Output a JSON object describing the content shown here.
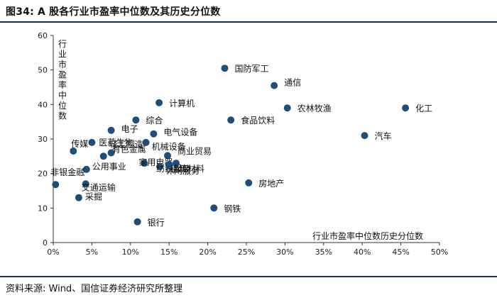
{
  "header": {
    "title": "图34: A 股各行业市盈率中位数及其历史分位数"
  },
  "footer": {
    "source": "资料来源: Wind、国信证券经济研究所整理"
  },
  "colors": {
    "point": "#1f4e79",
    "axis": "#333333",
    "rule": "#1a2e5a"
  },
  "chart_data": {
    "type": "scatter",
    "title": "A 股各行业市盈率中位数及其历史分位数",
    "xlabel": "行业市盈率中位数历史分位数",
    "ylabel": "行业市盈率中位数",
    "xlim": [
      0,
      50
    ],
    "ylim": [
      0,
      60
    ],
    "x_ticks": [
      0,
      5,
      10,
      15,
      20,
      25,
      30,
      35,
      40,
      45,
      50
    ],
    "x_tick_labels": [
      "0%",
      "5%",
      "10%",
      "15%",
      "20%",
      "25%",
      "30%",
      "35%",
      "40%",
      "45%",
      "50%"
    ],
    "y_ticks": [
      0,
      10,
      20,
      30,
      40,
      50,
      60
    ],
    "y_tick_labels": [
      "0",
      "10",
      "20",
      "30",
      "40",
      "50",
      "60"
    ],
    "grid": false,
    "points": [
      {
        "name": "国防军工",
        "x": 22.2,
        "y": 50.5
      },
      {
        "name": "通信",
        "x": 28.6,
        "y": 45.5
      },
      {
        "name": "农林牧渔",
        "x": 30.3,
        "y": 39.0
      },
      {
        "name": "化工",
        "x": 45.6,
        "y": 39.0
      },
      {
        "name": "计算机",
        "x": 13.7,
        "y": 40.5
      },
      {
        "name": "综合",
        "x": 10.7,
        "y": 35.5
      },
      {
        "name": "食品饮料",
        "x": 23.0,
        "y": 35.5
      },
      {
        "name": "电子",
        "x": 7.5,
        "y": 32.5
      },
      {
        "name": "电气设备",
        "x": 13.0,
        "y": 31.5
      },
      {
        "name": "汽车",
        "x": 40.3,
        "y": 31.0
      },
      {
        "name": "传媒",
        "x": 2.6,
        "y": 26.5
      },
      {
        "name": "医药生物",
        "x": 5.0,
        "y": 29.0
      },
      {
        "name": "轻工制造",
        "x": 7.5,
        "y": 26.0
      },
      {
        "name": "机械设备",
        "x": 12.0,
        "y": 29.0
      },
      {
        "name": "有色金属",
        "x": 6.5,
        "y": 25.0
      },
      {
        "name": "商业贸易",
        "x": 14.8,
        "y": 25.2
      },
      {
        "name": "家用电器",
        "x": 11.8,
        "y": 23.0
      },
      {
        "name": "公用事业",
        "x": 4.3,
        "y": 21.2
      },
      {
        "name": "纺织服装",
        "x": 13.8,
        "y": 22.0
      },
      {
        "name": "休闲服务",
        "x": 15.0,
        "y": 22.6
      },
      {
        "name": "建筑材料",
        "x": 15.9,
        "y": 23.0
      },
      {
        "name": "非银金融",
        "x": 0.3,
        "y": 16.8
      },
      {
        "name": "交通运输",
        "x": 4.2,
        "y": 17.0
      },
      {
        "name": "采掘",
        "x": 3.3,
        "y": 13.0
      },
      {
        "name": "房地产",
        "x": 25.3,
        "y": 17.3
      },
      {
        "name": "钢铁",
        "x": 20.8,
        "y": 10.0
      },
      {
        "name": "银行",
        "x": 10.9,
        "y": 6.0
      }
    ]
  }
}
